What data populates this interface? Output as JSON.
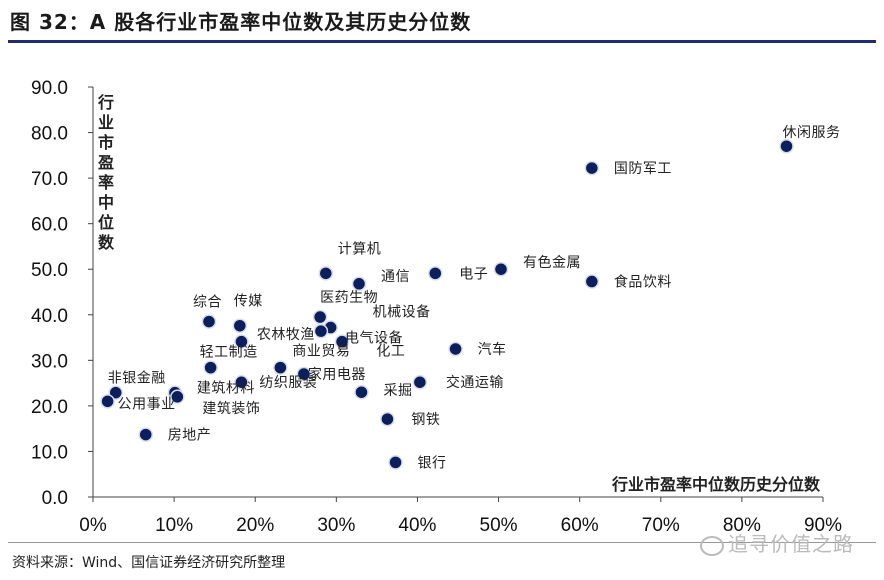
{
  "header": {
    "title": "图 32：A 股各行业市盈率中位数及其历史分位数"
  },
  "footer": {
    "source": "资料来源：Wind、国信证券经济研究所整理",
    "watermark": "追寻价值之路"
  },
  "chart_data": {
    "type": "scatter",
    "xlabel": "行业市盈率中位数历史分位数",
    "ylabel": "行业市盈率中位数",
    "xlim": [
      0,
      90
    ],
    "ylim": [
      0,
      90
    ],
    "x_ticks": [
      "0%",
      "10%",
      "20%",
      "30%",
      "40%",
      "50%",
      "60%",
      "70%",
      "80%",
      "90%"
    ],
    "y_ticks": [
      "0.0",
      "10.0",
      "20.0",
      "30.0",
      "40.0",
      "50.0",
      "60.0",
      "70.0",
      "80.0",
      "90.0"
    ],
    "point_color": "#0a1f5c",
    "points": [
      {
        "name": "休闲服务",
        "x": 85.5,
        "y": 77.0
      },
      {
        "name": "国防军工",
        "x": 61.5,
        "y": 72.2
      },
      {
        "name": "有色金属",
        "x": 50.3,
        "y": 50.0
      },
      {
        "name": "食品饮料",
        "x": 61.5,
        "y": 47.3
      },
      {
        "name": "电子",
        "x": 42.2,
        "y": 49.1
      },
      {
        "name": "计算机",
        "x": 28.7,
        "y": 49.1
      },
      {
        "name": "通信",
        "x": 32.8,
        "y": 46.8
      },
      {
        "name": "综合",
        "x": 14.3,
        "y": 38.5
      },
      {
        "name": "传媒",
        "x": 18.1,
        "y": 37.6
      },
      {
        "name": "医药生物",
        "x": 28.0,
        "y": 39.5
      },
      {
        "name": "机械设备",
        "x": 29.3,
        "y": 37.2
      },
      {
        "name": "农林牧渔",
        "x": 28.1,
        "y": 36.4
      },
      {
        "name": "电气设备",
        "x": 30.7,
        "y": 34.1
      },
      {
        "name": "汽车",
        "x": 44.7,
        "y": 32.5
      },
      {
        "name": "化工",
        "x": 18.3,
        "y": 34.1
      },
      {
        "name": "轻工制造",
        "x": 14.5,
        "y": 28.4
      },
      {
        "name": "商业贸易",
        "x": 23.1,
        "y": 28.4
      },
      {
        "name": "纺织服装",
        "x": 18.3,
        "y": 25.2
      },
      {
        "name": "家用电器",
        "x": 26.0,
        "y": 27.0
      },
      {
        "name": "交通运输",
        "x": 40.3,
        "y": 25.2
      },
      {
        "name": "采掘",
        "x": 33.1,
        "y": 23.0
      },
      {
        "name": "非银金融",
        "x": 2.8,
        "y": 22.9
      },
      {
        "name": "建筑材料",
        "x": 10.1,
        "y": 22.9
      },
      {
        "name": "建筑装饰",
        "x": 10.4,
        "y": 22.0
      },
      {
        "name": "公用事业",
        "x": 1.8,
        "y": 21.0
      },
      {
        "name": "钢铁",
        "x": 36.3,
        "y": 17.1
      },
      {
        "name": "房地产",
        "x": 6.5,
        "y": 13.7
      },
      {
        "name": "银行",
        "x": 37.3,
        "y": 7.6
      }
    ]
  }
}
